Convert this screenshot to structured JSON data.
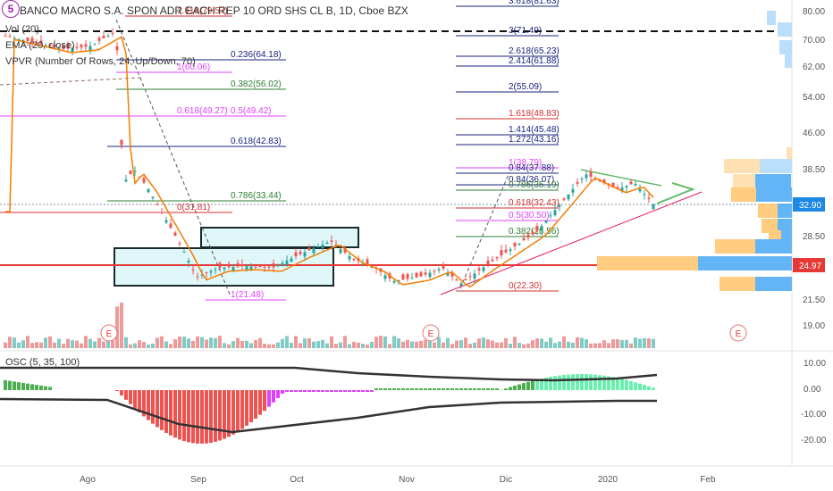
{
  "header": {
    "title": "BANCO MACRO S.A. SPON ADR EACH REP 10 ORD SHS CL B, 1D, Cboe BZX",
    "logo": "5"
  },
  "indicators": {
    "vol": "Vol (20)",
    "ema": "EMA (20, close)",
    "vpvr": "VPVR (Number Of Rows, 24, Up/Down, 70)",
    "osc": "OSC (5, 35, 100)"
  },
  "price_axis": {
    "ticks": [
      "80.00",
      "70.00",
      "62.00",
      "54.00",
      "46.00",
      "38.50",
      "32.90",
      "28.50",
      "24.97",
      "21.50",
      "19.00"
    ],
    "current_price": "32.90",
    "support_price": "24.97"
  },
  "osc_axis": {
    "ticks": [
      "10.00",
      "0.00",
      "-10.00",
      "-20.00"
    ]
  },
  "time_axis": {
    "ticks": [
      "Ago",
      "Sep",
      "Oct",
      "Nov",
      "Dic",
      "2020",
      "Feb"
    ]
  },
  "fib_right": [
    {
      "label": "3.618(81.63)",
      "color": "#1a237e"
    },
    {
      "label": "3(71.49)",
      "color": "#1a237e"
    },
    {
      "label": "2.618(65.23)",
      "color": "#1a237e"
    },
    {
      "label": "2.414(61.88)",
      "color": "#1a237e"
    },
    {
      "label": "2(55.09)",
      "color": "#1a237e"
    },
    {
      "label": "1.618(48.83)",
      "color": "#d32f2f"
    },
    {
      "label": "1.414(45.48)",
      "color": "#1a237e"
    },
    {
      "label": "1.272(43.16)",
      "color": "#1a237e"
    },
    {
      "label": "1(38.79)",
      "color": "#e040fb"
    },
    {
      "label": "0.84(37.88)",
      "color": "#1a237e"
    },
    {
      "label": "0.84(36.07)",
      "color": "#1a237e"
    },
    {
      "label": "0.786(35.19)",
      "color": "#2e7d32"
    },
    {
      "label": "0.618(32.43)",
      "color": "#d32f2f"
    },
    {
      "label": "0.5(30.50)",
      "color": "#e040fb"
    },
    {
      "label": "0.382(28.56)",
      "color": "#2e7d32"
    },
    {
      "label": "0(22.30)",
      "color": "#d32f2f"
    }
  ],
  "fib_left": [
    {
      "label": "1.618(79.57)",
      "color": "#d32f2f"
    },
    {
      "label": "0.236(64.18)",
      "color": "#1a237e"
    },
    {
      "label": "1(60.06)",
      "color": "#e040fb"
    },
    {
      "label": "0.382(56.02)",
      "color": "#2e7d32"
    },
    {
      "label": "0.618(49.27)",
      "color": "#e040fb"
    },
    {
      "label": "0.5(49.42)",
      "color": "#e040fb"
    },
    {
      "label": "0.618(42.83)",
      "color": "#1a237e"
    },
    {
      "label": "0.786(33.44)",
      "color": "#2e7d32"
    },
    {
      "label": "0(31.81)",
      "color": "#d32f2f"
    },
    {
      "label": "1(21.48)",
      "color": "#e040fb"
    }
  ],
  "earnings_marker": "E",
  "colors": {
    "up": "#26a69a",
    "down": "#ef5350",
    "ema": "#f57c00",
    "support": "#e53935",
    "current": "#1e88e5",
    "box_fill": "#e0f7fa"
  }
}
